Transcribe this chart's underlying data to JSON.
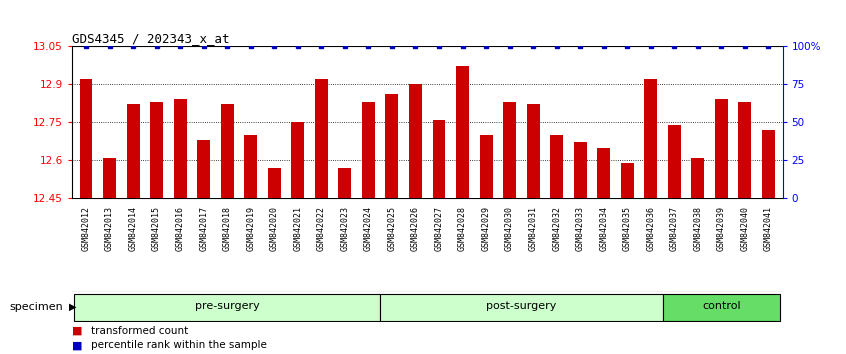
{
  "title": "GDS4345 / 202343_x_at",
  "categories": [
    "GSM842012",
    "GSM842013",
    "GSM842014",
    "GSM842015",
    "GSM842016",
    "GSM842017",
    "GSM842018",
    "GSM842019",
    "GSM842020",
    "GSM842021",
    "GSM842022",
    "GSM842023",
    "GSM842024",
    "GSM842025",
    "GSM842026",
    "GSM842027",
    "GSM842028",
    "GSM842029",
    "GSM842030",
    "GSM842031",
    "GSM842032",
    "GSM842033",
    "GSM842034",
    "GSM842035",
    "GSM842036",
    "GSM842037",
    "GSM842038",
    "GSM842039",
    "GSM842040",
    "GSM842041"
  ],
  "values": [
    12.92,
    12.61,
    12.82,
    12.83,
    12.84,
    12.68,
    12.82,
    12.7,
    12.57,
    12.75,
    12.92,
    12.57,
    12.83,
    12.86,
    12.9,
    12.76,
    12.97,
    12.7,
    12.83,
    12.82,
    12.7,
    12.67,
    12.65,
    12.59,
    12.92,
    12.74,
    12.61,
    12.84,
    12.83,
    12.72
  ],
  "groups": [
    {
      "label": "pre-surgery",
      "start": 0,
      "end": 13,
      "color": "#CCFFCC"
    },
    {
      "label": "post-surgery",
      "start": 13,
      "end": 25,
      "color": "#CCFFCC"
    },
    {
      "label": "control",
      "start": 25,
      "end": 30,
      "color": "#66DD66"
    }
  ],
  "bar_color": "#CC0000",
  "dot_color": "#0000BB",
  "ylim_left": [
    12.45,
    13.05
  ],
  "yticks_left": [
    12.45,
    12.6,
    12.75,
    12.9,
    13.05
  ],
  "yticks_right": [
    0,
    25,
    50,
    75,
    100
  ],
  "ylabel_right_labels": [
    "0",
    "25",
    "50",
    "75",
    "100%"
  ],
  "grid_values": [
    12.6,
    12.75,
    12.9
  ],
  "specimen_label": "specimen",
  "legend": [
    {
      "color": "#CC0000",
      "label": "transformed count"
    },
    {
      "color": "#0000BB",
      "label": "percentile rank within the sample"
    }
  ],
  "xtick_bg": "#CCCCCC",
  "group_border_color": "#006600",
  "plot_bg": "#FFFFFF"
}
